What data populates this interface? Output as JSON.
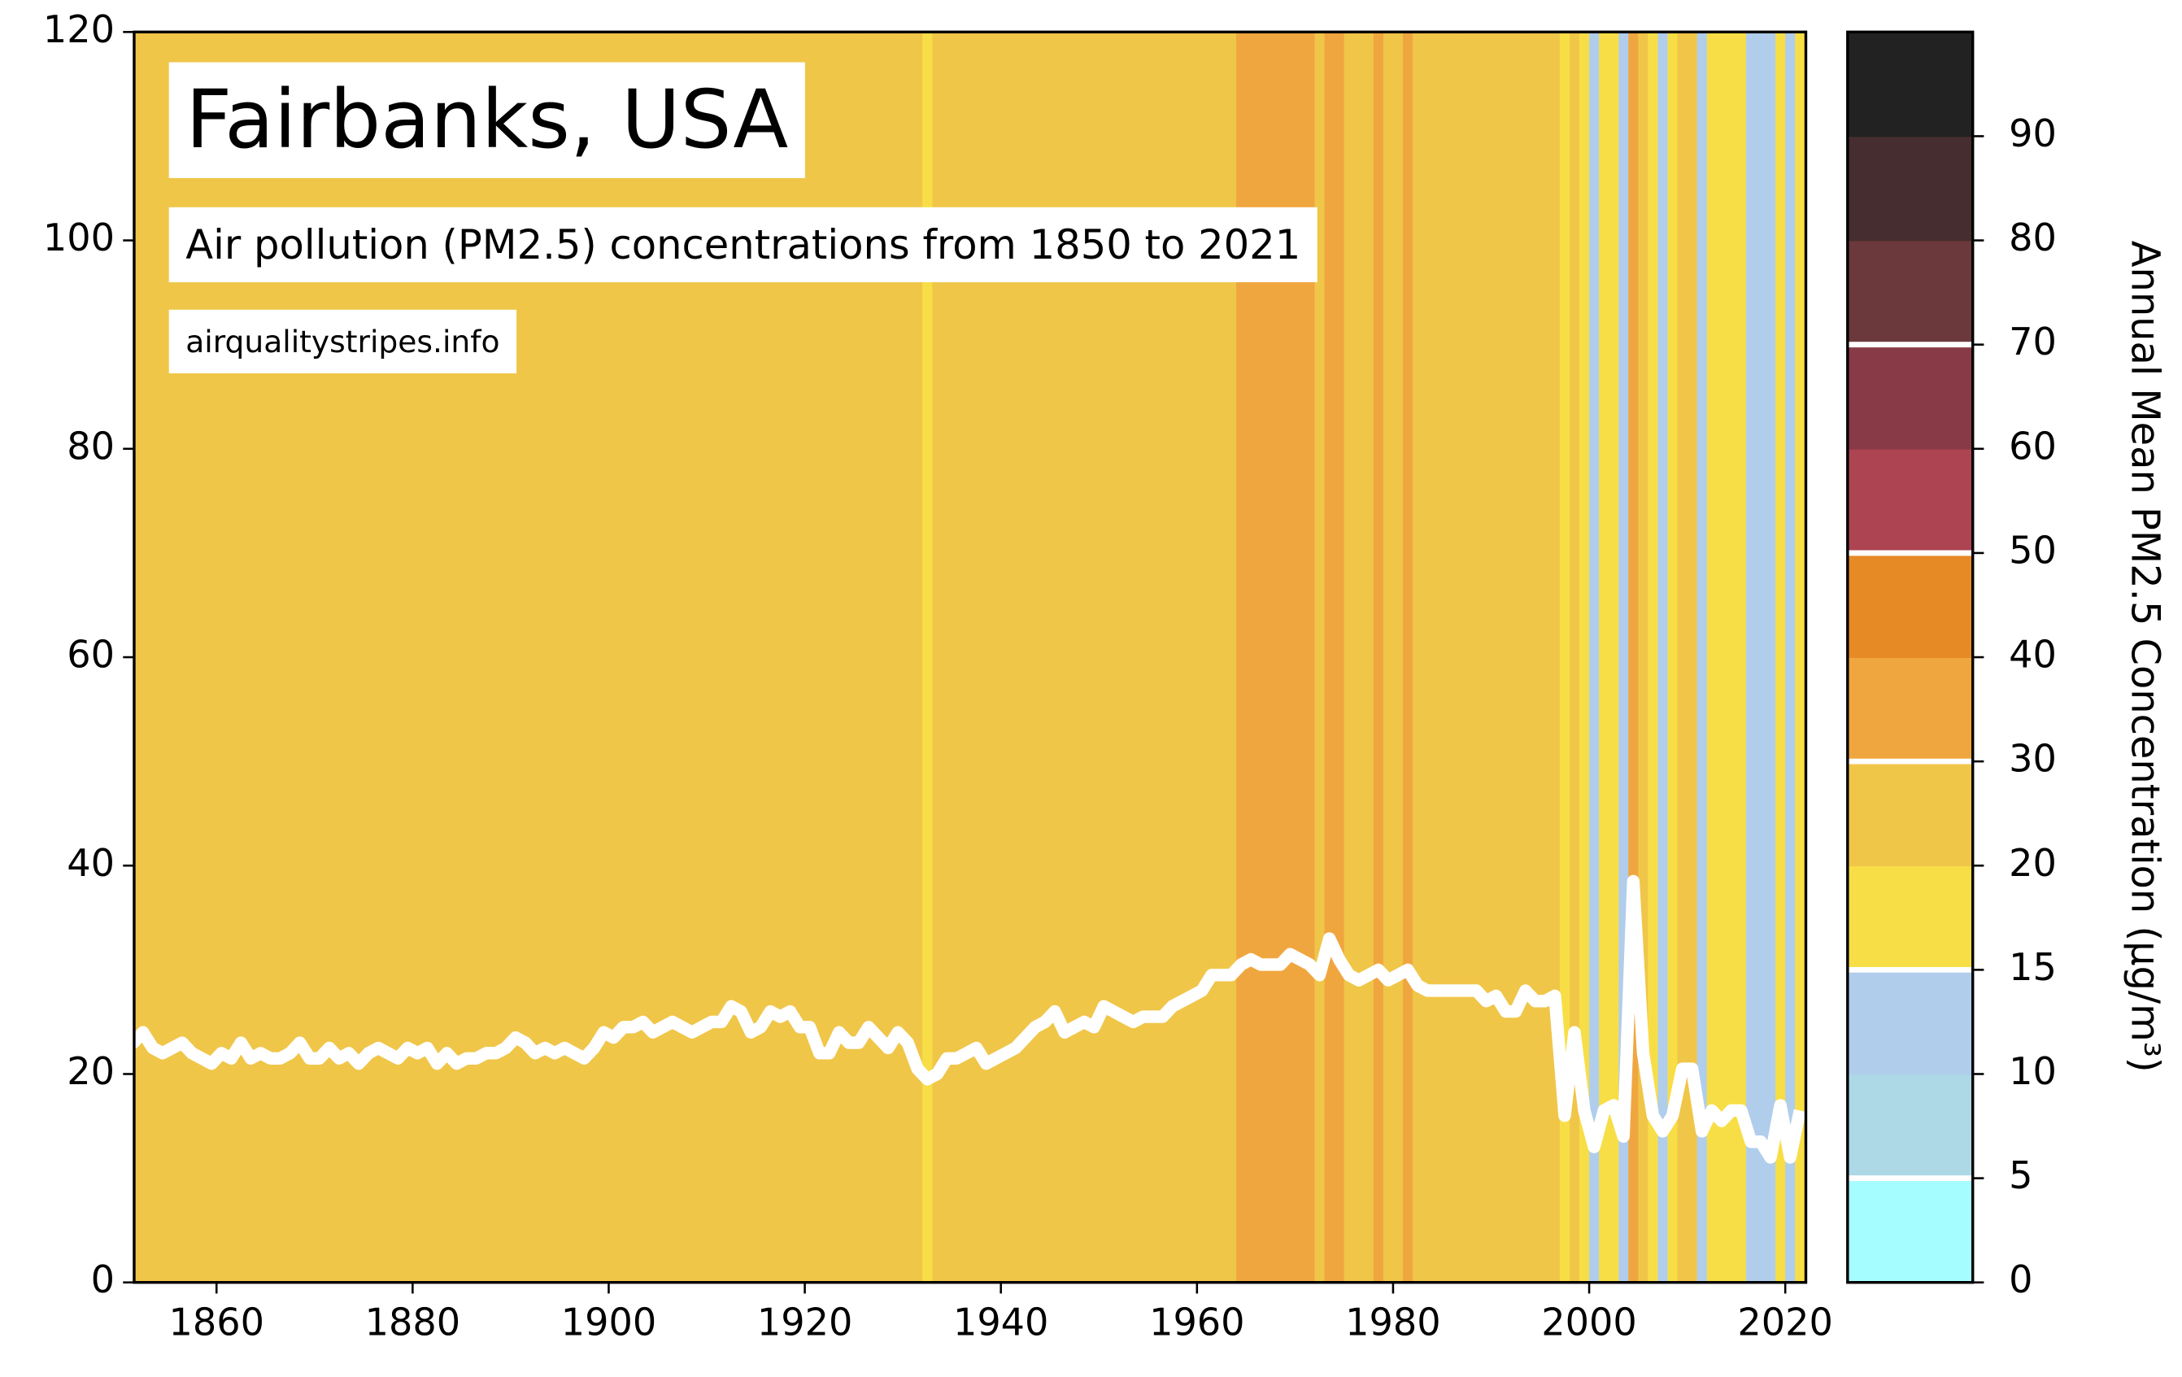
{
  "chart_data": {
    "type": "stripes",
    "title": "Fairbanks, USA",
    "subtitle": "Air pollution (PM2.5) concentrations from 1850 to 2021",
    "source": "airqualitystripes.info",
    "x": [
      1850,
      1851,
      1852,
      1853,
      1854,
      1855,
      1856,
      1857,
      1858,
      1859,
      1860,
      1861,
      1862,
      1863,
      1864,
      1865,
      1866,
      1867,
      1868,
      1869,
      1870,
      1871,
      1872,
      1873,
      1874,
      1875,
      1876,
      1877,
      1878,
      1879,
      1880,
      1881,
      1882,
      1883,
      1884,
      1885,
      1886,
      1887,
      1888,
      1889,
      1890,
      1891,
      1892,
      1893,
      1894,
      1895,
      1896,
      1897,
      1898,
      1899,
      1900,
      1901,
      1902,
      1903,
      1904,
      1905,
      1906,
      1907,
      1908,
      1909,
      1910,
      1911,
      1912,
      1913,
      1914,
      1915,
      1916,
      1917,
      1918,
      1919,
      1920,
      1921,
      1922,
      1923,
      1924,
      1925,
      1926,
      1927,
      1928,
      1929,
      1930,
      1931,
      1932,
      1933,
      1934,
      1935,
      1936,
      1937,
      1938,
      1939,
      1940,
      1941,
      1942,
      1943,
      1944,
      1945,
      1946,
      1947,
      1948,
      1949,
      1950,
      1951,
      1952,
      1953,
      1954,
      1955,
      1956,
      1957,
      1958,
      1959,
      1960,
      1961,
      1962,
      1963,
      1964,
      1965,
      1966,
      1967,
      1968,
      1969,
      1970,
      1971,
      1972,
      1973,
      1974,
      1975,
      1976,
      1977,
      1978,
      1979,
      1980,
      1981,
      1982,
      1983,
      1984,
      1985,
      1986,
      1987,
      1988,
      1989,
      1990,
      1991,
      1992,
      1993,
      1994,
      1995,
      1996,
      1997,
      1998,
      1999,
      2000,
      2001,
      2002,
      2003,
      2004,
      2005,
      2006,
      2007,
      2008,
      2009,
      2010,
      2011,
      2012,
      2013,
      2014,
      2015,
      2016,
      2017,
      2018,
      2019,
      2020,
      2021
    ],
    "values": [
      23,
      23,
      24,
      22.5,
      22,
      22.5,
      23,
      22,
      21.5,
      21,
      22,
      21.5,
      23,
      21.5,
      22,
      21.5,
      21.5,
      22,
      23,
      21.5,
      21.5,
      22.5,
      21.5,
      22,
      21,
      22,
      22.5,
      22,
      21.5,
      22.5,
      22,
      22.5,
      21,
      22,
      21,
      21.5,
      21.5,
      22,
      22,
      22.5,
      23.5,
      23,
      22,
      22.5,
      22,
      22.5,
      22,
      21.5,
      22.5,
      24,
      23.5,
      24.5,
      24.5,
      25,
      24,
      24.5,
      25,
      24.5,
      24,
      24.5,
      25,
      25,
      26.5,
      26,
      24,
      24.5,
      26,
      25.5,
      26,
      24.5,
      24.5,
      22,
      22,
      24,
      23,
      23,
      24.5,
      23.5,
      22.5,
      24,
      23,
      20.5,
      19.5,
      20,
      21.5,
      21.5,
      22,
      22.5,
      21,
      21.5,
      22,
      22.5,
      23.5,
      24.5,
      25,
      26,
      24,
      24.5,
      25,
      24.5,
      26.5,
      26,
      25.5,
      25,
      25.5,
      25.5,
      25.5,
      26.5,
      27,
      27.5,
      28,
      29.5,
      29.5,
      29.5,
      30.5,
      31,
      30.5,
      30.5,
      30.5,
      31.5,
      31,
      30.5,
      29.5,
      33,
      31,
      29.5,
      29,
      29.5,
      30,
      29,
      29.5,
      30,
      28.5,
      28,
      28,
      28,
      28,
      28,
      28,
      27,
      27.5,
      26,
      26,
      28,
      27,
      27,
      27.5,
      16,
      24,
      16.5,
      13,
      16.5,
      17,
      14,
      38.5,
      22,
      16,
      14.5,
      16,
      20.5,
      20.5,
      14.5,
      16.5,
      15.5,
      16.5,
      16.5,
      13.5,
      13.5,
      12,
      17,
      12,
      16.5
    ],
    "line_color": "#ffffff",
    "xlim": [
      1851.6,
      2022.1
    ],
    "ylim": [
      0,
      120
    ],
    "xticks": [
      1860,
      1880,
      1900,
      1920,
      1940,
      1960,
      1980,
      2000,
      2020
    ],
    "yticks": [
      0,
      20,
      40,
      60,
      80,
      100,
      120
    ],
    "colorbar": {
      "label": "Annual Mean PM2.5 Concentration (µg/m³)",
      "ticks": [
        0,
        5,
        10,
        15,
        20,
        30,
        40,
        50,
        60,
        70,
        80,
        90
      ],
      "colors": [
        "#a6fdff",
        "#add8e6",
        "#b0cdec",
        "#f8de46",
        "#f0c649",
        "#f0a63f",
        "#e68a26",
        "#ad4452",
        "#883a47",
        "#6b393b",
        "#462d2f",
        "#222222"
      ],
      "markers": [
        5,
        15,
        30,
        50,
        70
      ],
      "marker_color": "#ffffff"
    }
  }
}
